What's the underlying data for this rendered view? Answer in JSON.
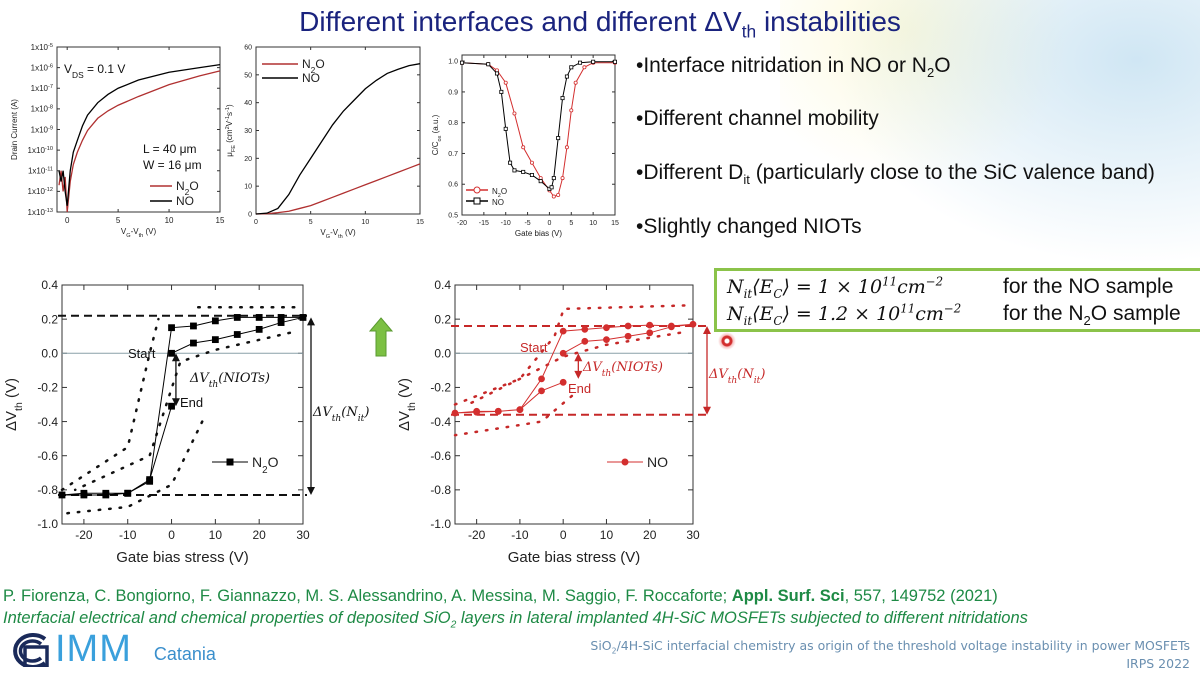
{
  "title": "Different interfaces and different ΔV_{th} instabilities",
  "bullets": [
    "•Interface nitridation in NO or N_{2}O",
    "•Different channel mobility",
    "•Different D_{it} (particularly close to the SiC valence band)",
    "•Slightly changed NIOTs"
  ],
  "formula_box": {
    "rows": [
      {
        "formula": "N_{it}⟨E_{C}⟩ = 1 × 10^{11}cm^{−2}",
        "label": "for the NO sample"
      },
      {
        "formula": "N_{it}⟨E_{C}⟩ = 1.2 × 10^{11}cm^{−2}",
        "label": "for the N_{2}O sample"
      }
    ]
  },
  "colors": {
    "title": "#1a237e",
    "n2o_transfer": "#b03030",
    "no_red": "#d32f2f",
    "citation": "#1e8a45",
    "box_border": "#8bc34a",
    "arrow": "#7cc043"
  },
  "icons": {
    "up_arrow": "green-up-arrow-icon",
    "pointer": "red-pointer-dot-icon",
    "logo": "cnr-logo-icon"
  },
  "citation": {
    "authors": "P. Fiorenza, C. Bongiorno, F. Giannazzo, M. S. Alessandrino, A. Messina, M. Saggio,  F. Roccaforte; ",
    "journal": "Appl. Surf. Sci",
    "ref": ", 557, 149752 (2021)",
    "title": "Interfacial electrical and chemical properties of deposited SiO_{2} layers in lateral implanted 4H-SiC MOSFETs subjected to different nitridations"
  },
  "logo": {
    "text": "IMM",
    "city": "Catania"
  },
  "footer": {
    "line1": "SiO_{2}/4H-SiC interfacial chemistry as origin of the threshold voltage instability in power MOSFETs",
    "line2": "IRPS 2022"
  },
  "chart_data": [
    {
      "type": "line",
      "title": "",
      "xlabel": "V_{G}-V_{th} (V)",
      "ylabel": "Drain Current (A)",
      "xlim": [
        -1,
        15
      ],
      "ylim": [
        1e-13,
        1e-05
      ],
      "yscale": "log",
      "xticks": [
        0,
        5,
        10,
        15
      ],
      "yticks": [
        1e-13,
        1e-12,
        1e-11,
        1e-10,
        1e-09,
        1e-08,
        1e-07,
        1e-06,
        1e-05
      ],
      "ytick_labels": [
        "1x10^{-13}",
        "1x10^{-12}",
        "1x10^{-11}",
        "1x10^{-10}",
        "1x10^{-9}",
        "1x10^{-8}",
        "1x10^{-7}",
        "1x10^{-6}",
        "1x10^{-5}"
      ],
      "annotations": [
        "V_{DS} = 0.1 V",
        "L = 40 μm",
        "W = 16 μm"
      ],
      "legend": "bottom-right",
      "series": [
        {
          "name": "N_{2}O",
          "color": "#b03030",
          "marker": "none",
          "x": [
            -0.8,
            -0.6,
            -0.4,
            -0.2,
            0,
            0.3,
            0.6,
            1,
            1.5,
            2,
            3,
            4,
            5,
            7,
            10,
            13,
            15
          ],
          "y": [
            2e-12,
            1e-11,
            1e-12,
            5e-12,
            1e-13,
            3e-12,
            2e-11,
            8e-11,
            3e-10,
            9e-10,
            3.5e-09,
            8e-09,
            1.5e-08,
            4e-08,
            1.5e-07,
            4e-07,
            7e-07
          ]
        },
        {
          "name": "NO",
          "color": "#000000",
          "marker": "none",
          "x": [
            -0.8,
            -0.6,
            -0.4,
            -0.2,
            0,
            0.3,
            0.6,
            1,
            1.5,
            2,
            3,
            4,
            5,
            7,
            10,
            13,
            15
          ],
          "y": [
            1e-11,
            3e-12,
            1e-11,
            1e-12,
            2e-13,
            1e-11,
            8e-11,
            3e-10,
            1.5e-09,
            5e-09,
            2e-08,
            5e-08,
            1e-07,
            2.5e-07,
            6e-07,
            1e-06,
            1.4e-06
          ]
        }
      ]
    },
    {
      "type": "line",
      "title": "",
      "xlabel": "V_{G}-V_{th} (V)",
      "ylabel": "μ_{FE} (cm^{2}V^{-1}s^{-1})",
      "xlim": [
        0,
        15
      ],
      "ylim": [
        0,
        60
      ],
      "xticks": [
        0,
        5,
        10,
        15
      ],
      "yticks": [
        0,
        10,
        20,
        30,
        40,
        50,
        60
      ],
      "legend": "top-left",
      "series": [
        {
          "name": "N_{2}O",
          "color": "#b03030",
          "marker": "none",
          "x": [
            0,
            1,
            2,
            3,
            4,
            5,
            6,
            7,
            8,
            9,
            10,
            11,
            12,
            13,
            14,
            15
          ],
          "y": [
            0,
            0.1,
            0.5,
            1,
            2,
            3,
            4.5,
            6,
            7.5,
            9,
            10.5,
            12,
            13.5,
            15,
            16.5,
            18
          ]
        },
        {
          "name": "NO",
          "color": "#000000",
          "marker": "none",
          "x": [
            0,
            1,
            2,
            3,
            4,
            5,
            6,
            7,
            8,
            9,
            10,
            11,
            12,
            13,
            14,
            15
          ],
          "y": [
            0,
            0.3,
            2,
            7,
            14,
            20,
            26,
            32,
            37,
            41,
            45,
            48,
            50.5,
            52,
            53.3,
            54
          ]
        }
      ]
    },
    {
      "type": "line",
      "title": "",
      "xlabel": "Gate bias (V)",
      "ylabel": "C/C_{ox} (a.u.)",
      "xlim": [
        -20,
        15
      ],
      "ylim": [
        0.5,
        1.02
      ],
      "xticks": [
        -20,
        -15,
        -10,
        -5,
        0,
        5,
        10,
        15
      ],
      "yticks": [
        0.5,
        0.6,
        0.7,
        0.8,
        0.9,
        1.0
      ],
      "ytick_labels": [
        "0.5",
        "0.6",
        "0.7",
        "0.8",
        "0.9",
        "1.0"
      ],
      "legend": "bottom-left",
      "series": [
        {
          "name": "N_{2}O",
          "color": "#d32f2f",
          "marker": "circle",
          "x": [
            -20,
            -14,
            -12,
            -10,
            -8,
            -6,
            -4,
            -2,
            0,
            1,
            2,
            3,
            4,
            5,
            6,
            8,
            10,
            15
          ],
          "y": [
            0.995,
            0.99,
            0.97,
            0.93,
            0.83,
            0.72,
            0.67,
            0.62,
            0.58,
            0.56,
            0.565,
            0.62,
            0.72,
            0.84,
            0.93,
            0.98,
            0.995,
            0.995
          ]
        },
        {
          "name": "NO",
          "color": "#000000",
          "marker": "square",
          "x": [
            -20,
            -14,
            -12,
            -11,
            -10,
            -9,
            -8,
            -6,
            -4,
            -2,
            0,
            0.5,
            1,
            2,
            3,
            4,
            5,
            7,
            10,
            15
          ],
          "y": [
            0.995,
            0.99,
            0.96,
            0.9,
            0.78,
            0.67,
            0.645,
            0.64,
            0.63,
            0.61,
            0.585,
            0.59,
            0.62,
            0.75,
            0.88,
            0.95,
            0.98,
            0.995,
            0.998,
            0.998
          ]
        }
      ]
    },
    {
      "type": "line",
      "title": "",
      "xlabel": "Gate bias stress (V)",
      "ylabel": "ΔV_{th} (V)",
      "xlim": [
        -25,
        30
      ],
      "ylim": [
        -1.0,
        0.4
      ],
      "xticks": [
        -20,
        -10,
        0,
        10,
        20,
        30
      ],
      "yticks": [
        -1.0,
        -0.8,
        -0.6,
        -0.4,
        -0.2,
        0.0,
        0.2,
        0.4
      ],
      "ytick_labels": [
        "-1.0",
        "-0.8",
        "-0.6",
        "-0.4",
        "-0.2",
        "0.0",
        "0.2",
        "0.4"
      ],
      "annotations": [
        "Start",
        "End",
        "ΔV_{th}(NIOTs)",
        "ΔV_{th}(N_{it})"
      ],
      "reference_lines": [
        0.22,
        -0.83
      ],
      "legend": "center-right",
      "series": [
        {
          "name": "N_{2}O",
          "color": "#000000",
          "marker": "square",
          "x": [
            0,
            5,
            10,
            15,
            20,
            25,
            30,
            25,
            20,
            15,
            10,
            5,
            0,
            -5,
            -10,
            -15,
            -20,
            -25,
            -20,
            -15,
            -10,
            -5,
            0
          ],
          "y": [
            0,
            0.06,
            0.08,
            0.11,
            0.14,
            0.18,
            0.21,
            0.21,
            0.21,
            0.21,
            0.19,
            0.16,
            0.15,
            -0.75,
            -0.82,
            -0.82,
            -0.82,
            -0.83,
            -0.83,
            -0.83,
            -0.82,
            -0.74,
            -0.31
          ]
        }
      ]
    },
    {
      "type": "line",
      "title": "",
      "xlabel": "Gate bias stress (V)",
      "ylabel": "ΔV_{th} (V)",
      "xlim": [
        -25,
        30
      ],
      "ylim": [
        -1.0,
        0.4
      ],
      "xticks": [
        -20,
        -10,
        0,
        10,
        20,
        30
      ],
      "yticks": [
        -1.0,
        -0.8,
        -0.6,
        -0.4,
        -0.2,
        0.0,
        0.2,
        0.4
      ],
      "ytick_labels": [
        "-1.0",
        "-0.8",
        "-0.6",
        "-0.4",
        "-0.2",
        "0.0",
        "0.2",
        "0.4"
      ],
      "annotations": [
        "Start",
        "End",
        "ΔV_{th}(NIOTs)",
        "ΔV_{th}(N_{it})"
      ],
      "reference_lines": [
        0.16,
        -0.36
      ],
      "legend": "center-right",
      "series": [
        {
          "name": "NO",
          "color": "#d32f2f",
          "marker": "circle",
          "x": [
            0,
            5,
            10,
            15,
            20,
            25,
            30,
            25,
            20,
            15,
            10,
            5,
            0,
            -5,
            -10,
            -15,
            -20,
            -25,
            -20,
            -15,
            -10,
            -5,
            0
          ],
          "y": [
            0,
            0.07,
            0.08,
            0.1,
            0.12,
            0.155,
            0.17,
            0.16,
            0.165,
            0.16,
            0.15,
            0.14,
            0.13,
            -0.15,
            -0.33,
            -0.34,
            -0.34,
            -0.35,
            -0.345,
            -0.34,
            -0.33,
            -0.22,
            -0.17
          ]
        }
      ]
    }
  ]
}
